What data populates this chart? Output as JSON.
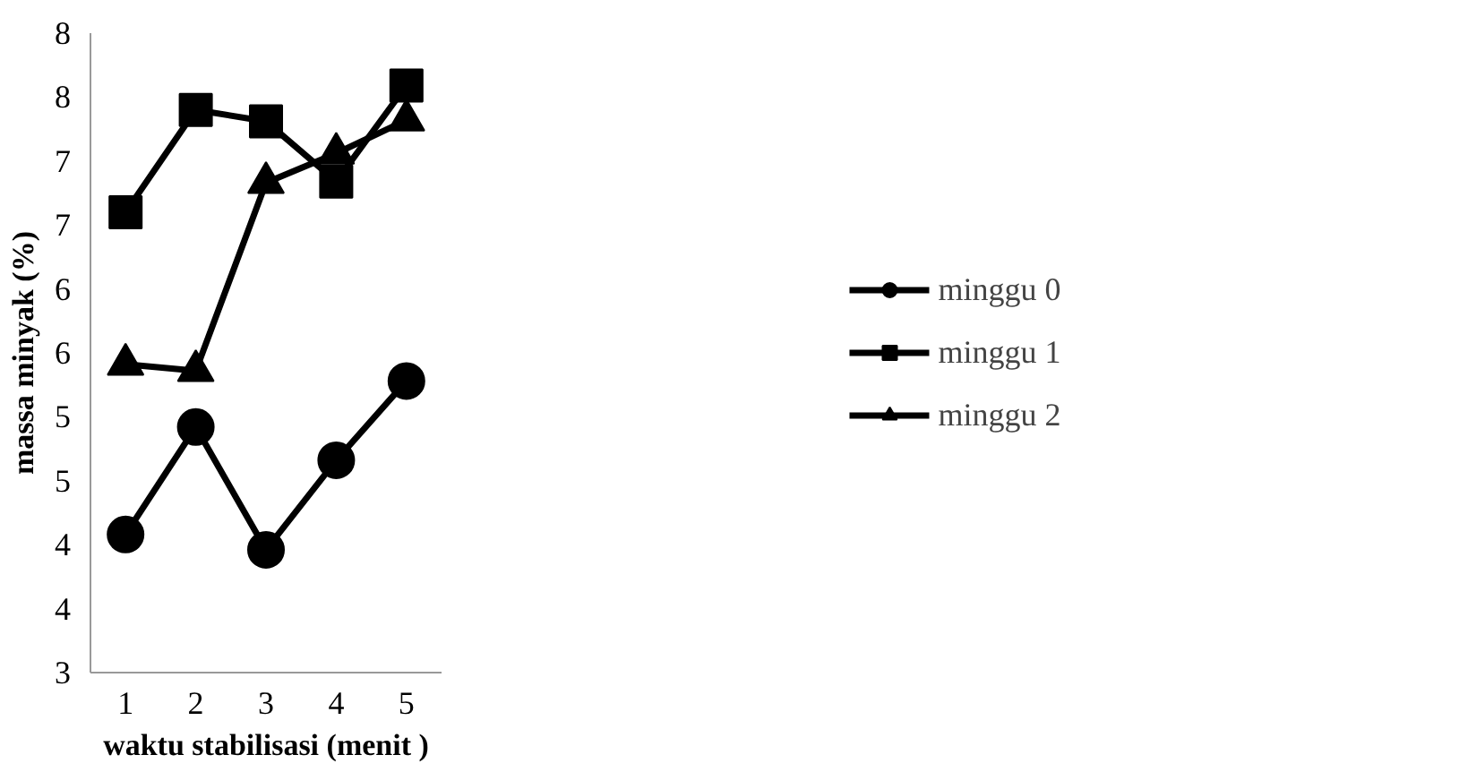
{
  "chart_data": {
    "type": "line",
    "xlabel": "waktu stabilisasi (menit )",
    "ylabel": "massa minyak (%)",
    "categories": [
      "1",
      "2",
      "3",
      "4",
      "5"
    ],
    "series": [
      {
        "name": "minggu 0",
        "color": "#000000",
        "marker": "circle",
        "values": [
          4.08,
          4.92,
          3.96,
          4.66,
          5.28
        ]
      },
      {
        "name": "minggu 1",
        "color": "#000000",
        "marker": "square",
        "values": [
          6.6,
          7.4,
          7.31,
          6.84,
          7.59
        ]
      },
      {
        "name": "minggu 2",
        "color": "#000000",
        "marker": "triangle",
        "values": [
          5.41,
          5.36,
          6.83,
          7.06,
          7.32
        ]
      }
    ],
    "ylim": [
      3,
      8
    ],
    "yticks": [
      3,
      {
        "value": 3.5,
        "label": "4"
      },
      4,
      {
        "value": 4.5,
        "label": "5"
      },
      5,
      {
        "value": 5.5,
        "label": "6"
      },
      6,
      {
        "value": 6.5,
        "label": "7"
      },
      7,
      {
        "value": 7.5,
        "label": "8"
      },
      8
    ],
    "grid": false,
    "legend": "right",
    "line_style": "solid"
  }
}
